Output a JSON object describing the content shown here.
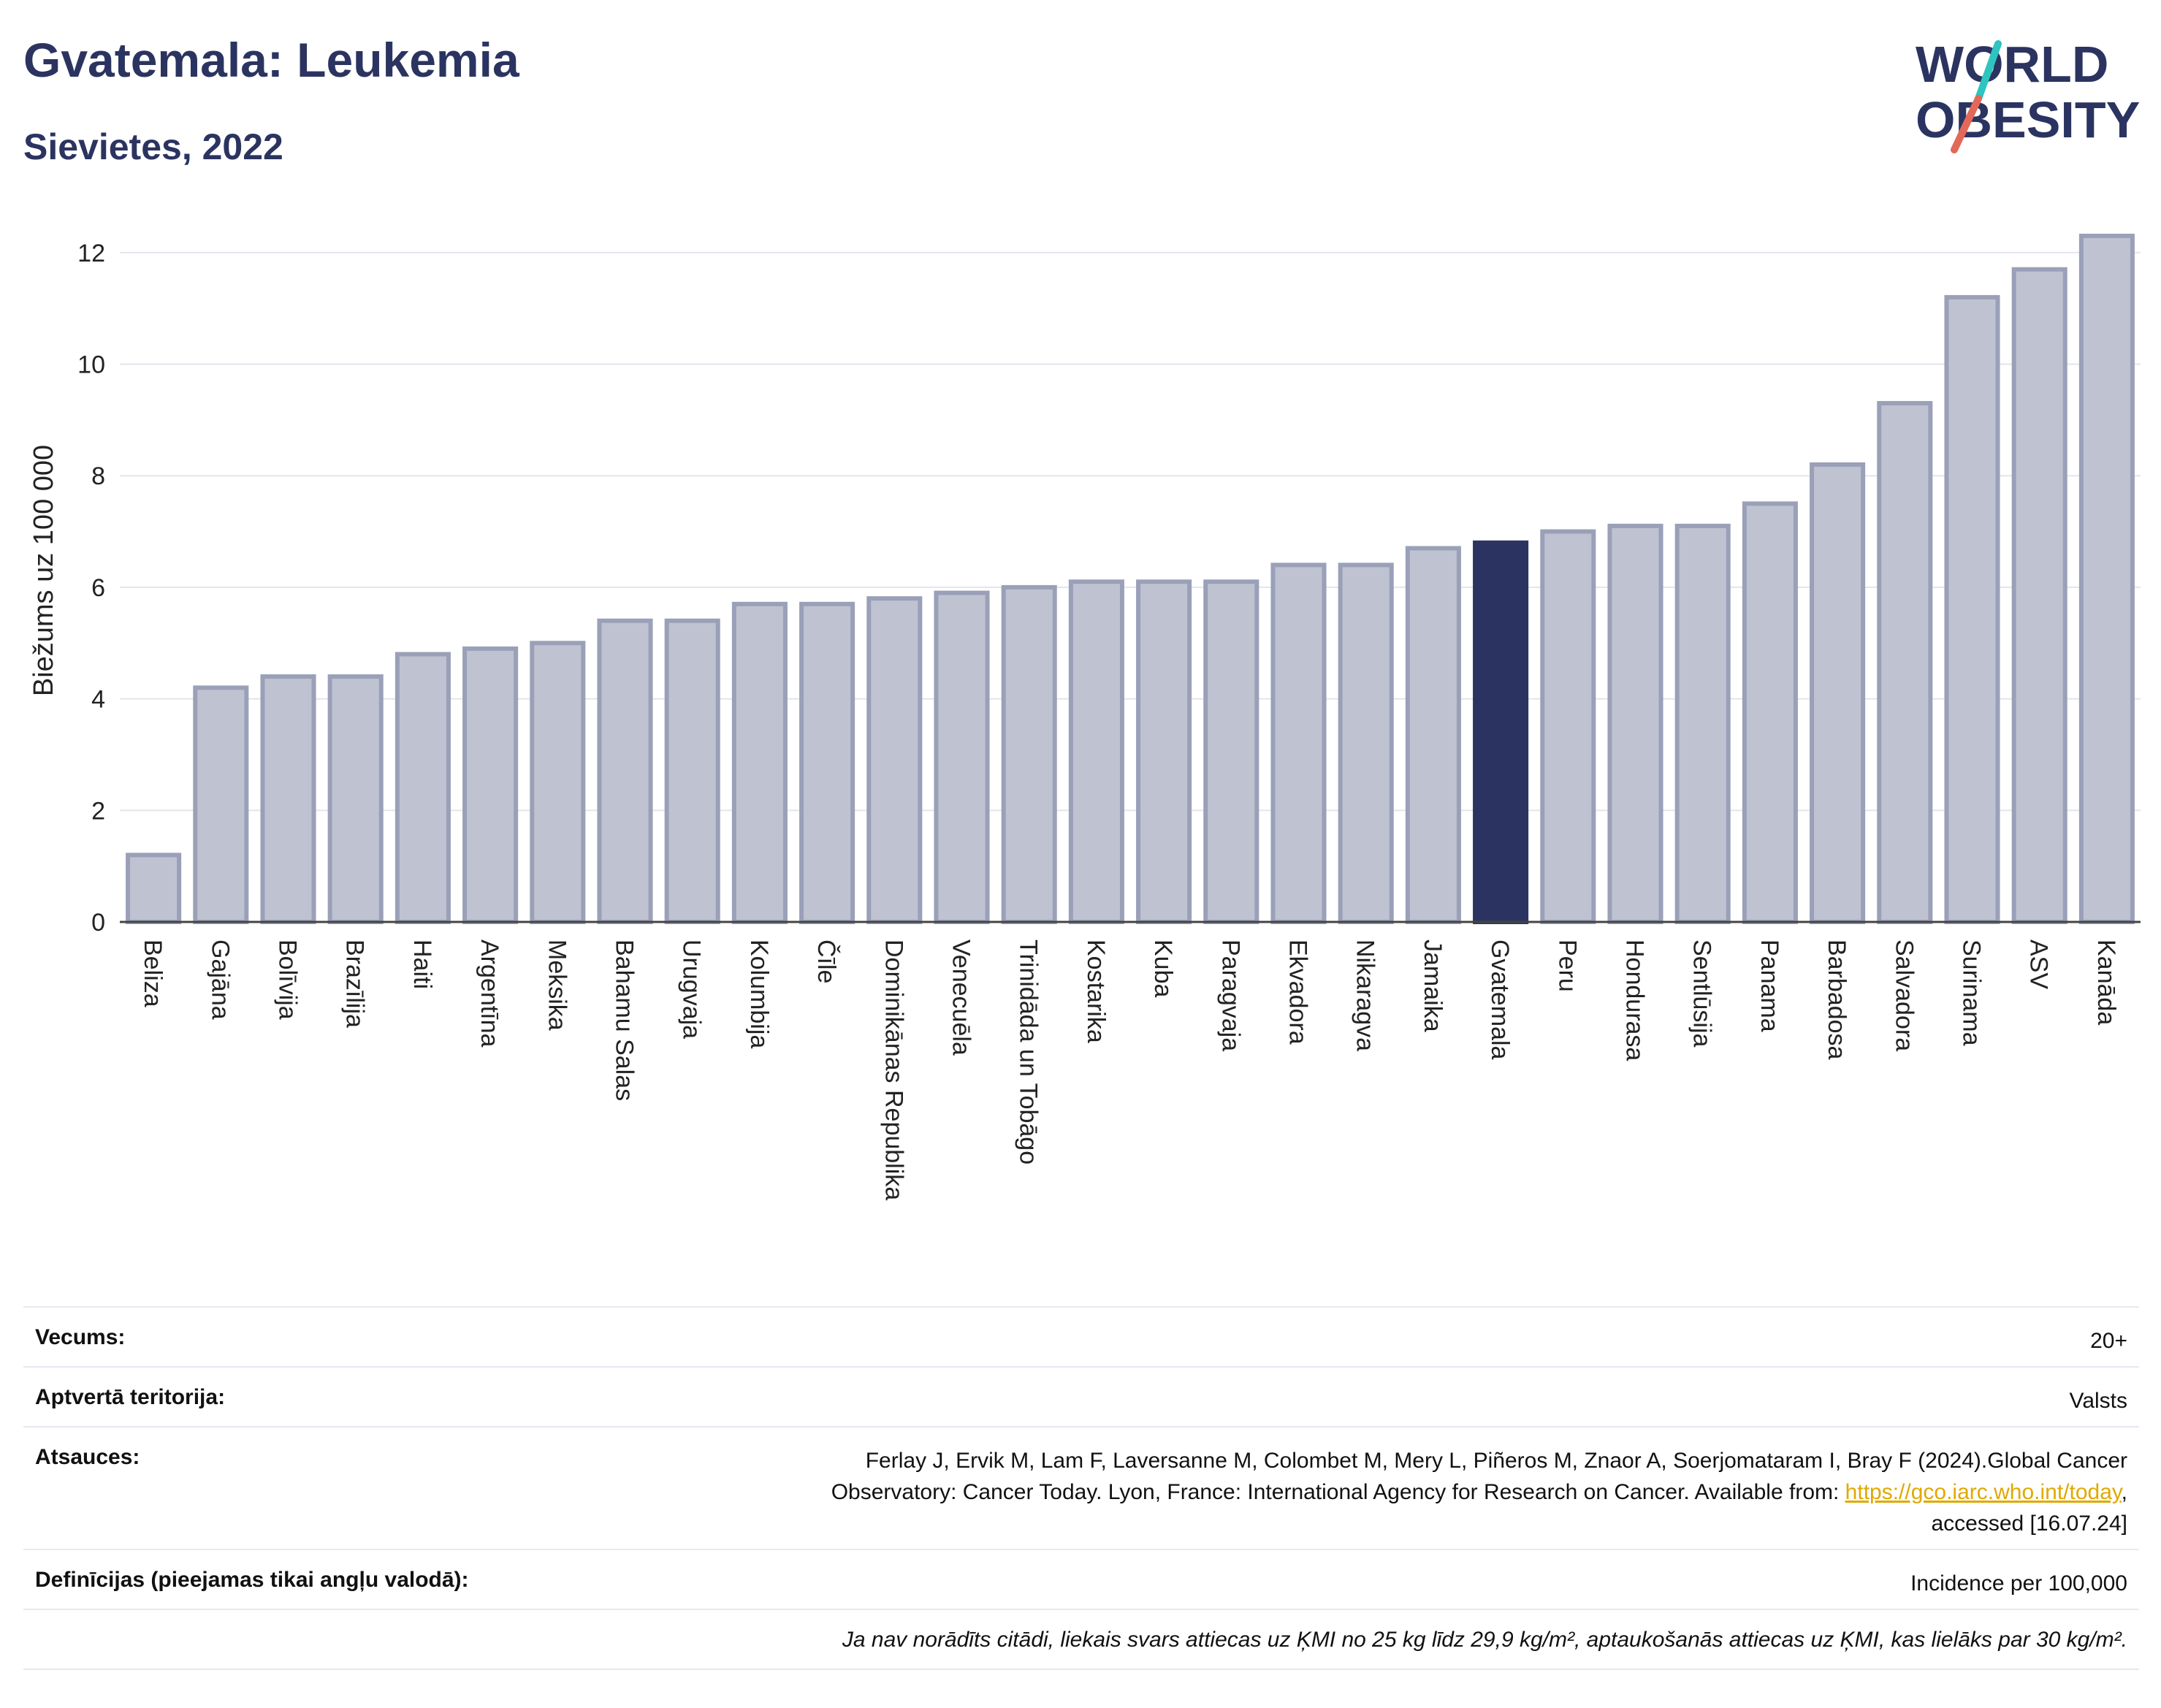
{
  "header": {
    "title": "Gvatemala: Leukemia",
    "subtitle": "Sievietes, 2022"
  },
  "logo": {
    "line1": "WORLD",
    "line2": "OBESITY",
    "icon": "world-obesity-logo"
  },
  "colors": {
    "bar": "#bfc3d1",
    "bar_border": "#9aa0b8",
    "highlight": "#2b3460",
    "title": "#2b3460",
    "link": "#e0a800"
  },
  "chart_data": {
    "type": "bar",
    "ylabel": "Biežums uz 100 000",
    "ylim": [
      0,
      12.6
    ],
    "yticks": [
      0,
      2,
      4,
      6,
      8,
      10,
      12
    ],
    "grid": true,
    "highlight": "Gvatemala",
    "categories": [
      "Beliza",
      "Gajāna",
      "Bolīvija",
      "Brazīlija",
      "Haiti",
      "Argentīna",
      "Meksika",
      "Bahamu Salas",
      "Urugvaja",
      "Kolumbija",
      "Čīle",
      "Dominikānas Republika",
      "Venecuēla",
      "Trinidāda un Tobāgo",
      "Kostarika",
      "Kuba",
      "Paragvaja",
      "Ekvadora",
      "Nikaragva",
      "Jamaika",
      "Gvatemala",
      "Peru",
      "Hondurasa",
      "Sentlūsija",
      "Panama",
      "Barbadosa",
      "Salvadora",
      "Surinama",
      "ASV",
      "Kanāda"
    ],
    "values": [
      1.2,
      4.2,
      4.4,
      4.4,
      4.8,
      4.9,
      5.0,
      5.4,
      5.4,
      5.7,
      5.7,
      5.8,
      5.9,
      6.0,
      6.1,
      6.1,
      6.1,
      6.4,
      6.4,
      6.7,
      6.8,
      7.0,
      7.1,
      7.1,
      7.5,
      8.2,
      9.3,
      11.2,
      11.7,
      12.3
    ]
  },
  "table": {
    "age_label": "Vecums:",
    "age_value": "20+",
    "area_label": "Aptvertā teritorija:",
    "area_value": "Valsts",
    "refs_label": "Atsauces:",
    "refs_line1": "Ferlay J, Ervik M, Lam F, Laversanne M, Colombet M, Mery L, Piñeros M, Znaor A, Soerjomataram I, Bray F (2024).Global Cancer",
    "refs_line2": "Observatory: Cancer Today. Lyon, France: International Agency for Research on Cancer. Available from: ",
    "refs_link": "https://gco.iarc.who.int/today",
    "refs_line2_end": ",",
    "refs_line3": "accessed [16.07.24]",
    "defs_label": "Definīcijas (pieejamas tikai angļu valodā):",
    "defs_value": "Incidence per 100,000",
    "note": "Ja nav norādīts citādi, liekais svars attiecas uz ĶMI no 25 kg līdz 29,9 kg/m², aptaukošanās attiecas uz ĶMI, kas lielāks par 30 kg/m²."
  }
}
